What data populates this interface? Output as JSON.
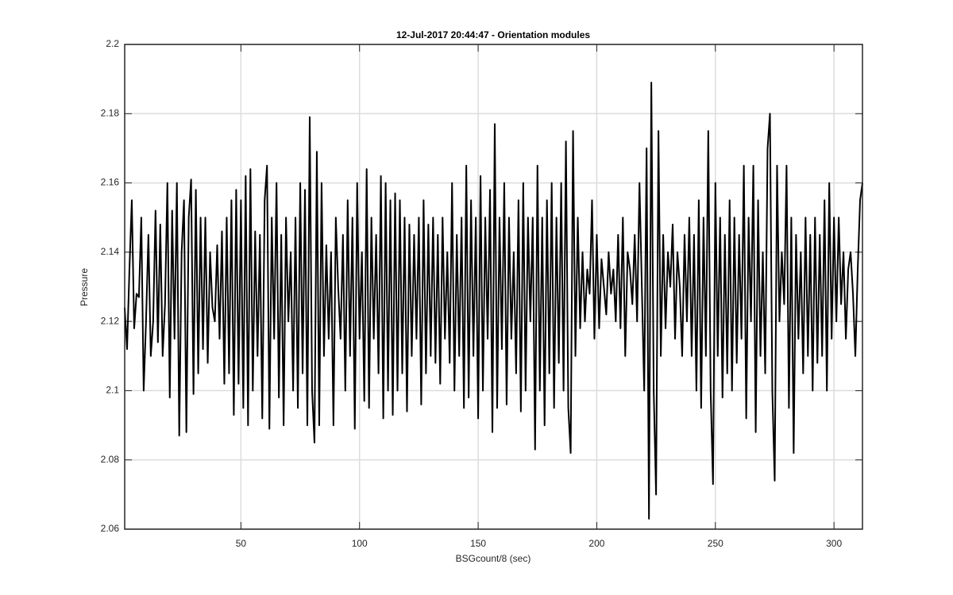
{
  "chart_data": {
    "type": "line",
    "title": "12-Jul-2017 20:44:47 - Orientation modules",
    "x_label": "BSGcount/8 (sec)",
    "y_label": "Pressure",
    "color": "#000000",
    "grid": true,
    "xlim": [
      1,
      312
    ],
    "ylim": [
      2.06,
      2.2
    ],
    "xticks": [
      50,
      100,
      150,
      200,
      250,
      300
    ],
    "yticks": [
      2.06,
      2.08,
      2.1,
      2.12,
      2.14,
      2.16,
      2.18,
      2.2
    ],
    "x": [
      1,
      2,
      3,
      4,
      5,
      6,
      7,
      8,
      9,
      10,
      11,
      12,
      13,
      14,
      15,
      16,
      17,
      18,
      19,
      20,
      21,
      22,
      23,
      24,
      25,
      26,
      27,
      28,
      29,
      30,
      31,
      32,
      33,
      34,
      35,
      36,
      37,
      38,
      39,
      40,
      41,
      42,
      43,
      44,
      45,
      46,
      47,
      48,
      49,
      50,
      51,
      52,
      53,
      54,
      55,
      56,
      57,
      58,
      59,
      60,
      61,
      62,
      63,
      64,
      65,
      66,
      67,
      68,
      69,
      70,
      71,
      72,
      73,
      74,
      75,
      76,
      77,
      78,
      79,
      80,
      81,
      82,
      83,
      84,
      85,
      86,
      87,
      88,
      89,
      90,
      91,
      92,
      93,
      94,
      95,
      96,
      97,
      98,
      99,
      100,
      101,
      102,
      103,
      104,
      105,
      106,
      107,
      108,
      109,
      110,
      111,
      112,
      113,
      114,
      115,
      116,
      117,
      118,
      119,
      120,
      121,
      122,
      123,
      124,
      125,
      126,
      127,
      128,
      129,
      130,
      131,
      132,
      133,
      134,
      135,
      136,
      137,
      138,
      139,
      140,
      141,
      142,
      143,
      144,
      145,
      146,
      147,
      148,
      149,
      150,
      151,
      152,
      153,
      154,
      155,
      156,
      157,
      158,
      159,
      160,
      161,
      162,
      163,
      164,
      165,
      166,
      167,
      168,
      169,
      170,
      171,
      172,
      173,
      174,
      175,
      176,
      177,
      178,
      179,
      180,
      181,
      182,
      183,
      184,
      185,
      186,
      187,
      188,
      189,
      190,
      191,
      192,
      193,
      194,
      195,
      196,
      197,
      198,
      199,
      200,
      201,
      202,
      203,
      204,
      205,
      206,
      207,
      208,
      209,
      210,
      211,
      212,
      213,
      214,
      215,
      216,
      217,
      218,
      219,
      220,
      221,
      222,
      223,
      224,
      225,
      226,
      227,
      228,
      229,
      230,
      231,
      232,
      233,
      234,
      235,
      236,
      237,
      238,
      239,
      240,
      241,
      242,
      243,
      244,
      245,
      246,
      247,
      248,
      249,
      250,
      251,
      252,
      253,
      254,
      255,
      256,
      257,
      258,
      259,
      260,
      261,
      262,
      263,
      264,
      265,
      266,
      267,
      268,
      269,
      270,
      271,
      272,
      273,
      274,
      275,
      276,
      277,
      278,
      279,
      280,
      281,
      282,
      283,
      284,
      285,
      286,
      287,
      288,
      289,
      290,
      291,
      292,
      293,
      294,
      295,
      296,
      297,
      298,
      299,
      300,
      301,
      302,
      303,
      304,
      305,
      306,
      307,
      308,
      309,
      310,
      311,
      312
    ],
    "values": [
      2.124,
      2.112,
      2.135,
      2.155,
      2.118,
      2.128,
      2.127,
      2.15,
      2.1,
      2.12,
      2.145,
      2.11,
      2.12,
      2.152,
      2.114,
      2.148,
      2.11,
      2.125,
      2.16,
      2.098,
      2.152,
      2.115,
      2.16,
      2.087,
      2.14,
      2.155,
      2.088,
      2.15,
      2.161,
      2.099,
      2.158,
      2.105,
      2.15,
      2.112,
      2.15,
      2.108,
      2.14,
      2.124,
      2.12,
      2.142,
      2.115,
      2.146,
      2.102,
      2.15,
      2.105,
      2.155,
      2.093,
      2.158,
      2.102,
      2.155,
      2.095,
      2.162,
      2.09,
      2.164,
      2.1,
      2.146,
      2.11,
      2.145,
      2.092,
      2.155,
      2.165,
      2.089,
      2.15,
      2.115,
      2.16,
      2.098,
      2.145,
      2.09,
      2.15,
      2.12,
      2.14,
      2.1,
      2.15,
      2.095,
      2.16,
      2.105,
      2.158,
      2.09,
      2.179,
      2.1,
      2.085,
      2.169,
      2.09,
      2.16,
      2.11,
      2.142,
      2.115,
      2.14,
      2.09,
      2.15,
      2.13,
      2.115,
      2.145,
      2.1,
      2.155,
      2.11,
      2.15,
      2.089,
      2.16,
      2.115,
      2.14,
      2.097,
      2.164,
      2.095,
      2.15,
      2.115,
      2.145,
      2.105,
      2.162,
      2.092,
      2.16,
      2.1,
      2.155,
      2.093,
      2.157,
      2.1,
      2.155,
      2.105,
      2.15,
      2.094,
      2.148,
      2.11,
      2.145,
      2.115,
      2.15,
      2.096,
      2.155,
      2.105,
      2.148,
      2.11,
      2.15,
      2.108,
      2.145,
      2.102,
      2.15,
      2.115,
      2.14,
      2.108,
      2.16,
      2.1,
      2.145,
      2.11,
      2.15,
      2.095,
      2.165,
      2.098,
      2.155,
      2.11,
      2.15,
      2.092,
      2.162,
      2.1,
      2.15,
      2.115,
      2.158,
      2.088,
      2.177,
      2.095,
      2.15,
      2.112,
      2.16,
      2.096,
      2.15,
      2.115,
      2.14,
      2.105,
      2.155,
      2.094,
      2.16,
      2.1,
      2.15,
      2.12,
      2.15,
      2.083,
      2.165,
      2.1,
      2.15,
      2.09,
      2.155,
      2.105,
      2.16,
      2.095,
      2.15,
      2.108,
      2.16,
      2.1,
      2.172,
      2.095,
      2.082,
      2.175,
      2.11,
      2.15,
      2.118,
      2.14,
      2.12,
      2.135,
      2.128,
      2.155,
      2.115,
      2.145,
      2.118,
      2.138,
      2.13,
      2.122,
      2.14,
      2.128,
      2.135,
      2.12,
      2.145,
      2.118,
      2.15,
      2.11,
      2.14,
      2.135,
      2.125,
      2.145,
      2.12,
      2.16,
      2.13,
      2.1,
      2.17,
      2.063,
      2.189,
      2.1,
      2.07,
      2.175,
      2.11,
      2.145,
      2.118,
      2.14,
      2.13,
      2.148,
      2.115,
      2.14,
      2.13,
      2.11,
      2.145,
      2.12,
      2.15,
      2.11,
      2.145,
      2.1,
      2.155,
      2.095,
      2.15,
      2.11,
      2.175,
      2.1,
      2.073,
      2.16,
      2.11,
      2.15,
      2.098,
      2.145,
      2.105,
      2.155,
      2.1,
      2.15,
      2.108,
      2.145,
      2.115,
      2.165,
      2.092,
      2.15,
      2.12,
      2.165,
      2.088,
      2.155,
      2.11,
      2.14,
      2.105,
      2.17,
      2.18,
      2.1,
      2.074,
      2.165,
      2.12,
      2.14,
      2.125,
      2.165,
      2.095,
      2.15,
      2.082,
      2.145,
      2.115,
      2.14,
      2.105,
      2.15,
      2.11,
      2.145,
      2.1,
      2.15,
      2.108,
      2.145,
      2.11,
      2.155,
      2.1,
      2.16,
      2.115,
      2.15,
      2.12,
      2.15,
      2.125,
      2.14,
      2.115,
      2.135,
      2.14,
      2.128,
      2.11,
      2.135,
      2.155,
      2.16
    ]
  }
}
